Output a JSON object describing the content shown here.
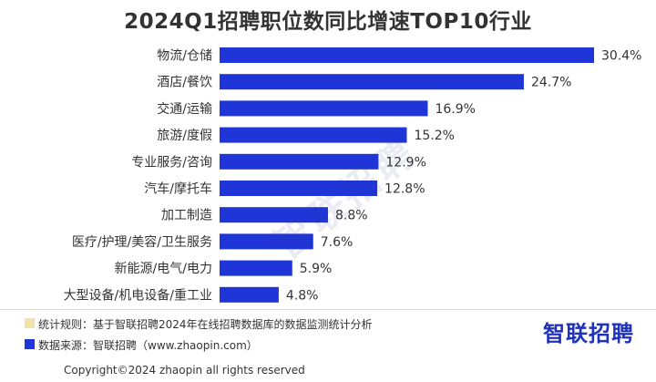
{
  "chart_data": {
    "type": "bar",
    "orientation": "horizontal",
    "title": "2024Q1招聘职位数同比增速TOP10行业",
    "categories": [
      "物流/仓储",
      "酒店/餐饮",
      "交通/运输",
      "旅游/度假",
      "专业服务/咨询",
      "汽车/摩托车",
      "加工制造",
      "医疗/护理/美容/卫生服务",
      "新能源/电气/电力",
      "大型设备/机电设备/重工业"
    ],
    "values": [
      30.4,
      24.7,
      16.9,
      15.2,
      12.9,
      12.8,
      8.8,
      7.6,
      5.9,
      4.8
    ],
    "value_labels": [
      "30.4%",
      "24.7%",
      "16.9%",
      "15.2%",
      "12.9%",
      "12.8%",
      "8.8%",
      "7.6%",
      "5.9%",
      "4.8%"
    ],
    "unit": "%",
    "xlim": [
      0,
      30.4
    ],
    "grid": false,
    "bar_color": "#1f35d8"
  },
  "watermark": "智联招聘",
  "notes": [
    {
      "text": "统计规则：基于智联招聘2024年在线招聘数据库的数据监测统计分析",
      "color": "#f2e3a6"
    },
    {
      "text": "数据来源：智联招聘（www.zhaopin.com）",
      "color": "#1f35d8"
    }
  ],
  "brand_logo": "智联招聘",
  "copyright": "Copyright©2024 zhaopin all rights reserved"
}
